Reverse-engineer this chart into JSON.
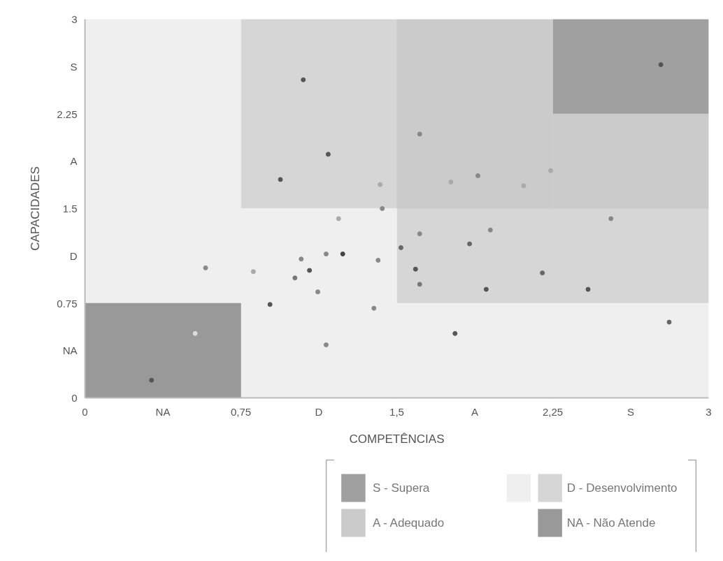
{
  "chart_data": {
    "type": "scatter",
    "xlabel": "COMPETÊNCIAS",
    "ylabel": "CAPACIDADES",
    "xlim": [
      0,
      3
    ],
    "ylim": [
      0,
      3
    ],
    "xticks": [
      0,
      {
        "value": 0.375,
        "label": "NA"
      },
      {
        "value": 0.75,
        "label": "0,75"
      },
      {
        "value": 1.125,
        "label": "D"
      },
      {
        "value": 1.5,
        "label": "1,5"
      },
      {
        "value": 1.875,
        "label": "A"
      },
      {
        "value": 2.25,
        "label": "2,25"
      },
      {
        "value": 2.625,
        "label": "S"
      },
      3
    ],
    "yticks": [
      0,
      {
        "value": 0.375,
        "label": "NA"
      },
      0.75,
      {
        "value": 1.125,
        "label": "D"
      },
      1.5,
      {
        "value": 1.875,
        "label": "A"
      },
      2.25,
      {
        "value": 2.625,
        "label": "S"
      },
      3
    ],
    "legend": "bottom",
    "marker": "circle",
    "series": [
      {
        "type": "bar",
        "name": "S - Supera",
        "color": "#a0a0a0",
        "x": [
          2.625
        ],
        "base": [
          2.25
        ],
        "values": [
          0.75
        ]
      },
      {
        "type": "bar",
        "name": "D - Desenvolvimento",
        "color": "#d6d6d6",
        "x": [
          1.125,
          1.875,
          2.625
        ],
        "base": [
          1.5,
          0.75,
          0.75
        ],
        "values": [
          1.5,
          0.75,
          0.75
        ]
      },
      {
        "type": "bar",
        "color": "#efefef",
        "x": [
          0.375,
          1.125,
          1.875,
          2.625
        ],
        "base": [
          0.75,
          0,
          0,
          0
        ],
        "values": [
          2.25,
          1.5,
          0.75,
          0.75
        ]
      },
      {
        "type": "bar",
        "name": "A - Adequado",
        "color": "#cbcbcb",
        "x": [
          1.875,
          2.625
        ],
        "base": [
          1.5,
          1.5
        ],
        "values": [
          1.5,
          0.75
        ]
      },
      {
        "type": "bar",
        "name": "NA - Não Atende",
        "color": "#999999",
        "x": [
          0.375
        ],
        "base": [
          0
        ],
        "values": [
          0.75
        ]
      },
      {
        "x": [
          0.32,
          0.53,
          0.58,
          0.81,
          0.89,
          0.94,
          1.01,
          1.04,
          1.05,
          1.08,
          1.12,
          1.16,
          1.16,
          1.17,
          1.22,
          1.24,
          1.39,
          1.41,
          1.42,
          1.43,
          1.52,
          1.59,
          1.61,
          1.61,
          1.61,
          1.76,
          1.78,
          1.85,
          1.89,
          1.93,
          1.95,
          2.11,
          2.2,
          2.24,
          2.42,
          2.53,
          2.77,
          2.81
        ],
        "values": [
          0.14,
          0.51,
          1.03,
          1.0,
          0.74,
          1.73,
          0.95,
          1.1,
          2.52,
          1.01,
          0.84,
          1.14,
          0.42,
          1.93,
          1.42,
          1.14,
          0.71,
          1.09,
          1.69,
          1.5,
          1.19,
          1.02,
          1.3,
          0.9,
          2.09,
          1.71,
          0.51,
          1.22,
          1.76,
          0.86,
          1.33,
          1.68,
          0.99,
          1.8,
          0.86,
          1.42,
          2.64,
          0.6
        ],
        "colors": [
          "#555555",
          "#dddddd",
          "#888888",
          "#aaaaaa",
          "#555555",
          "#555555",
          "#777777",
          "#888888",
          "#555555",
          "#555555",
          "#888888",
          "#888888",
          "#888888",
          "#555555",
          "#aaaaaa",
          "#444444",
          "#888888",
          "#888888",
          "#aaaaaa",
          "#888888",
          "#666666",
          "#555555",
          "#888888",
          "#777777",
          "#888888",
          "#aaaaaa",
          "#555555",
          "#666666",
          "#888888",
          "#555555",
          "#888888",
          "#aaaaaa",
          "#666666",
          "#aaaaaa",
          "#555555",
          "#888888",
          "#555555",
          "#666666"
        ]
      }
    ]
  }
}
